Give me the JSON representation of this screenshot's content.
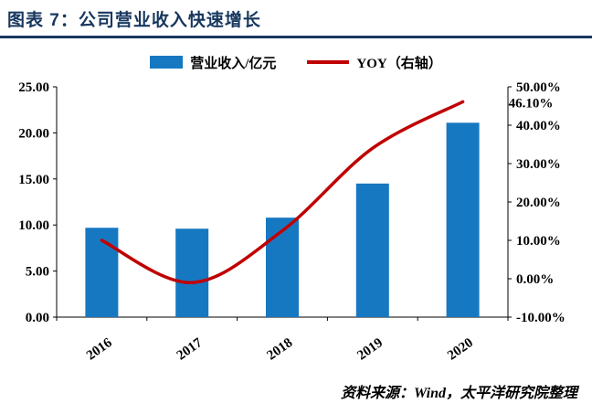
{
  "header": {
    "title": "图表 7：公司营业收入快速增长"
  },
  "footer": {
    "source": "资料来源：Wind，太平洋研究院整理"
  },
  "colors": {
    "title_blue": "#17375E",
    "bar_blue": "#1778C2",
    "line_red": "#C00000",
    "axis_black": "#000000"
  },
  "chart_data": {
    "type": "bar",
    "subtype": "bar-line combo, line on secondary (right) axis",
    "title": "图表 7：公司营业收入快速增长",
    "categories": [
      "2016",
      "2017",
      "2018",
      "2019",
      "2020"
    ],
    "series": [
      {
        "name": "营业收入/亿元",
        "type": "bar",
        "axis": "left",
        "color": "#1778C2",
        "values": [
          9.7,
          9.6,
          10.8,
          14.5,
          21.1
        ]
      },
      {
        "name": "YOY（右轴）",
        "type": "line",
        "axis": "right",
        "color": "#C00000",
        "values": [
          10.0,
          -1.0,
          12.5,
          34.0,
          46.1
        ]
      }
    ],
    "left_axis": {
      "range": [
        0,
        25
      ],
      "step": 5,
      "labels": [
        "0.00",
        "5.00",
        "10.00",
        "15.00",
        "20.00",
        "25.00"
      ]
    },
    "right_axis": {
      "range": [
        -10,
        50
      ],
      "step": 10,
      "labels": [
        "-10.00%",
        "0.00%",
        "10.00%",
        "20.00%",
        "30.00%",
        "40.00%",
        "50.00%"
      ]
    },
    "annotation": {
      "text": "46.10%",
      "series_index": 1,
      "point_index": 4
    },
    "legend_position": "top",
    "grid": false
  }
}
